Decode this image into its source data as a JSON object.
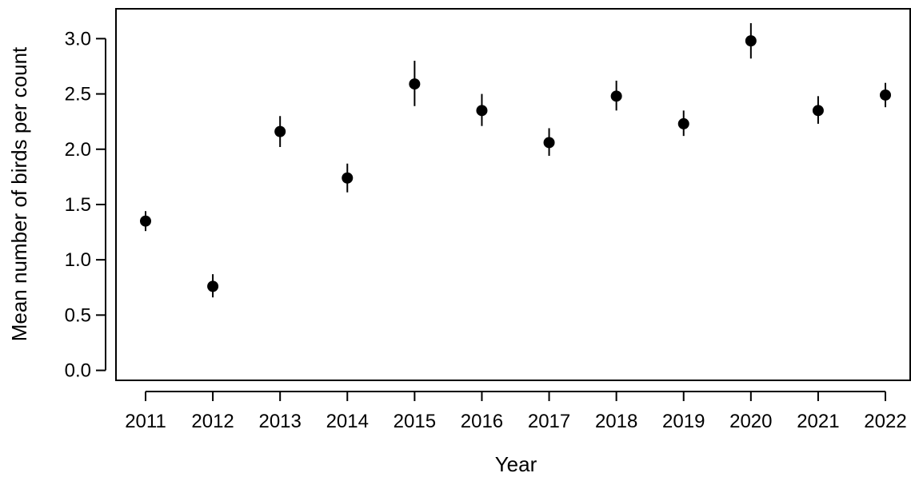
{
  "chart_data": {
    "type": "scatter",
    "title": "",
    "xlabel": "Year",
    "ylabel": "Mean number of birds per count",
    "categories": [
      "2011",
      "2012",
      "2013",
      "2014",
      "2015",
      "2016",
      "2017",
      "2018",
      "2019",
      "2020",
      "2021",
      "2022"
    ],
    "values": [
      1.35,
      0.76,
      2.16,
      1.74,
      2.59,
      2.35,
      2.06,
      2.48,
      2.23,
      2.98,
      2.35,
      2.49
    ],
    "error_low": [
      1.26,
      0.66,
      2.02,
      1.61,
      2.39,
      2.21,
      1.94,
      2.35,
      2.12,
      2.82,
      2.23,
      2.38
    ],
    "error_high": [
      1.44,
      0.87,
      2.3,
      1.87,
      2.8,
      2.5,
      2.19,
      2.62,
      2.35,
      3.14,
      2.48,
      2.6
    ],
    "ylim": [
      -0.09,
      3.27
    ],
    "yticks": [
      0.0,
      0.5,
      1.0,
      1.5,
      2.0,
      2.5,
      3.0
    ],
    "ytick_labels": [
      "0.0",
      "0.5",
      "1.0",
      "1.5",
      "2.0",
      "2.5",
      "3.0"
    ],
    "grid": false,
    "marker_color": "#000000"
  }
}
